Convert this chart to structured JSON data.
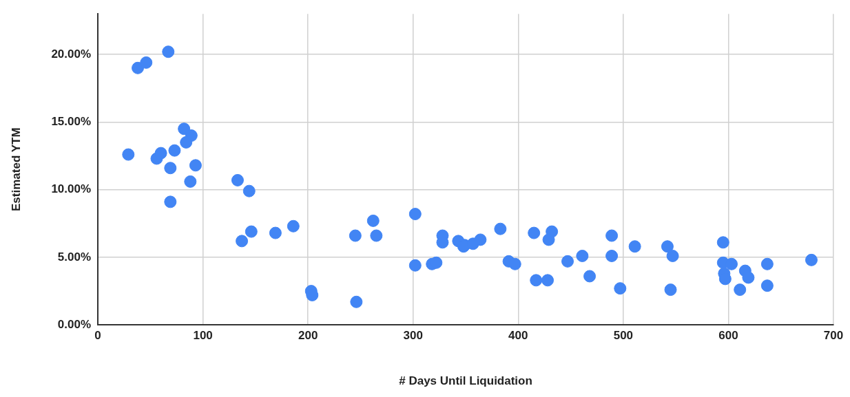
{
  "chart_data": {
    "type": "scatter",
    "xlabel": "# Days Until Liquidation",
    "ylabel": "Estimated YTM",
    "marker": "circle",
    "grid": true,
    "legend": false,
    "xlim": [
      0,
      700
    ],
    "xticks": [
      0,
      100,
      200,
      300,
      400,
      500,
      600,
      700
    ],
    "ylim": [
      0,
      23
    ],
    "yticks": [
      {
        "value": 0,
        "label": "0.00%"
      },
      {
        "value": 5,
        "label": "5.00%"
      },
      {
        "value": 10,
        "label": "10.00%"
      },
      {
        "value": 15,
        "label": "15.00%"
      },
      {
        "value": 20,
        "label": "20.00%"
      }
    ],
    "series": [
      {
        "color": "#4285f4",
        "x": [
          38,
          46,
          67,
          29,
          56,
          60,
          73,
          69,
          82,
          89,
          84,
          93,
          88,
          69,
          133,
          144,
          137,
          146,
          169,
          186,
          203,
          204,
          245,
          246,
          262,
          265,
          302,
          302,
          318,
          322,
          328,
          328,
          343,
          349,
          348,
          357,
          364,
          383,
          391,
          397,
          415,
          417,
          429,
          432,
          428,
          447,
          461,
          468,
          489,
          489,
          497,
          511,
          542,
          547,
          545,
          595,
          595,
          603,
          596,
          597,
          616,
          619,
          611,
          637,
          637,
          679
        ],
        "values": [
          19.0,
          19.4,
          20.2,
          12.6,
          12.3,
          12.7,
          12.9,
          11.6,
          14.5,
          14.0,
          13.5,
          11.8,
          10.6,
          9.1,
          10.7,
          9.9,
          6.2,
          6.9,
          6.8,
          7.3,
          2.5,
          2.2,
          6.6,
          1.7,
          7.7,
          6.6,
          8.2,
          4.4,
          4.5,
          4.6,
          6.6,
          6.1,
          6.2,
          5.9,
          5.8,
          6.0,
          6.3,
          7.1,
          4.7,
          4.5,
          6.8,
          3.3,
          6.3,
          6.9,
          3.3,
          4.7,
          5.1,
          3.6,
          6.6,
          5.1,
          2.7,
          5.8,
          5.8,
          5.1,
          2.6,
          6.1,
          4.6,
          4.5,
          3.8,
          3.4,
          4.0,
          3.5,
          2.6,
          4.5,
          2.9,
          4.8
        ]
      }
    ]
  }
}
